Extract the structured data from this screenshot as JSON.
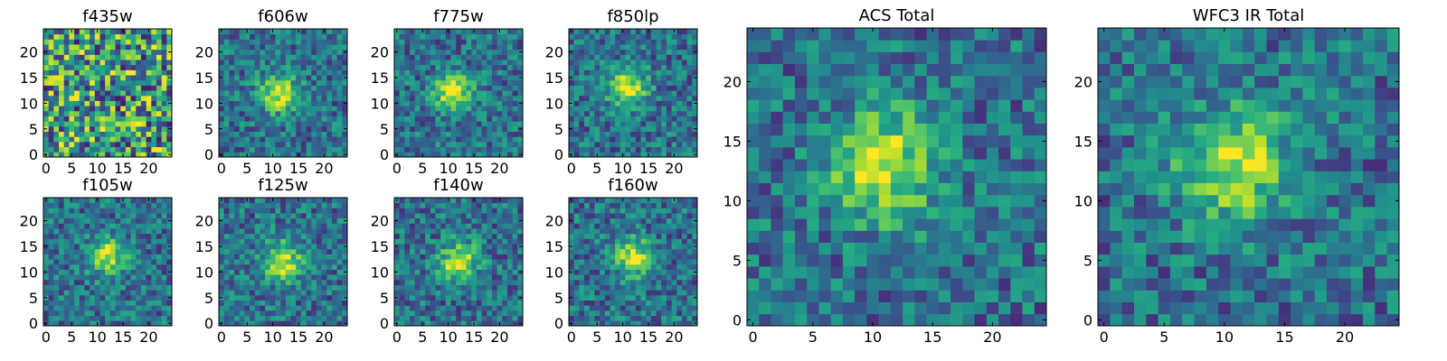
{
  "chart_data": [
    {
      "type": "heatmap",
      "title": "f435w",
      "xticks": [
        "0",
        "5",
        "10",
        "15",
        "20"
      ],
      "yticks": [
        "0",
        "5",
        "10",
        "15",
        "20"
      ],
      "xlim": [
        0,
        25
      ],
      "ylim": [
        0,
        25
      ],
      "peak": [
        null,
        null
      ],
      "colormap": "viridis"
    },
    {
      "type": "heatmap",
      "title": "f606w",
      "xticks": [
        "0",
        "5",
        "10",
        "15",
        "20"
      ],
      "yticks": [
        "0",
        "5",
        "10",
        "15",
        "20"
      ],
      "xlim": [
        0,
        25
      ],
      "ylim": [
        0,
        25
      ],
      "peak": [
        11,
        12
      ],
      "colormap": "viridis"
    },
    {
      "type": "heatmap",
      "title": "f775w",
      "xticks": [
        "0",
        "5",
        "10",
        "15",
        "20"
      ],
      "yticks": [
        "0",
        "5",
        "10",
        "15",
        "20"
      ],
      "xlim": [
        0,
        25
      ],
      "ylim": [
        0,
        25
      ],
      "peak": [
        11,
        12
      ],
      "colormap": "viridis"
    },
    {
      "type": "heatmap",
      "title": "f850lp",
      "xticks": [
        "0",
        "5",
        "10",
        "15",
        "20"
      ],
      "yticks": [
        "0",
        "5",
        "10",
        "15",
        "20"
      ],
      "xlim": [
        0,
        25
      ],
      "ylim": [
        0,
        25
      ],
      "peak": [
        11,
        13
      ],
      "colormap": "viridis"
    },
    {
      "type": "heatmap",
      "title": "f105w",
      "xticks": [
        "0",
        "5",
        "10",
        "15",
        "20"
      ],
      "yticks": [
        "0",
        "5",
        "10",
        "15",
        "20"
      ],
      "xlim": [
        0,
        25
      ],
      "ylim": [
        0,
        25
      ],
      "peak": [
        12,
        13
      ],
      "colormap": "viridis"
    },
    {
      "type": "heatmap",
      "title": "f125w",
      "xticks": [
        "0",
        "5",
        "10",
        "15",
        "20"
      ],
      "yticks": [
        "0",
        "5",
        "10",
        "15",
        "20"
      ],
      "xlim": [
        0,
        25
      ],
      "ylim": [
        0,
        25
      ],
      "peak": [
        12,
        12
      ],
      "colormap": "viridis"
    },
    {
      "type": "heatmap",
      "title": "f140w",
      "xticks": [
        "0",
        "5",
        "10",
        "15",
        "20"
      ],
      "yticks": [
        "0",
        "5",
        "10",
        "15",
        "20"
      ],
      "xlim": [
        0,
        25
      ],
      "ylim": [
        0,
        25
      ],
      "peak": [
        12,
        12
      ],
      "colormap": "viridis"
    },
    {
      "type": "heatmap",
      "title": "f160w",
      "xticks": [
        "0",
        "5",
        "10",
        "15",
        "20"
      ],
      "yticks": [
        "0",
        "5",
        "10",
        "15",
        "20"
      ],
      "xlim": [
        0,
        25
      ],
      "ylim": [
        0,
        25
      ],
      "peak": [
        12,
        13
      ],
      "colormap": "viridis"
    },
    {
      "type": "heatmap",
      "title": "ACS Total",
      "xticks": [
        "0",
        "5",
        "10",
        "15",
        "20"
      ],
      "yticks": [
        "0",
        "5",
        "10",
        "15",
        "20"
      ],
      "xlim": [
        0,
        25
      ],
      "ylim": [
        0,
        25
      ],
      "peak": [
        11,
        13
      ],
      "colormap": "viridis"
    },
    {
      "type": "heatmap",
      "title": "WFC3 IR Total",
      "xticks": [
        "0",
        "5",
        "10",
        "15",
        "20"
      ],
      "yticks": [
        "0",
        "5",
        "10",
        "15",
        "20"
      ],
      "xlim": [
        0,
        25
      ],
      "ylim": [
        0,
        25
      ],
      "peak": [
        11,
        13
      ],
      "colormap": "viridis"
    }
  ],
  "colors": {
    "axis": "#000000",
    "background": "#ffffff"
  }
}
